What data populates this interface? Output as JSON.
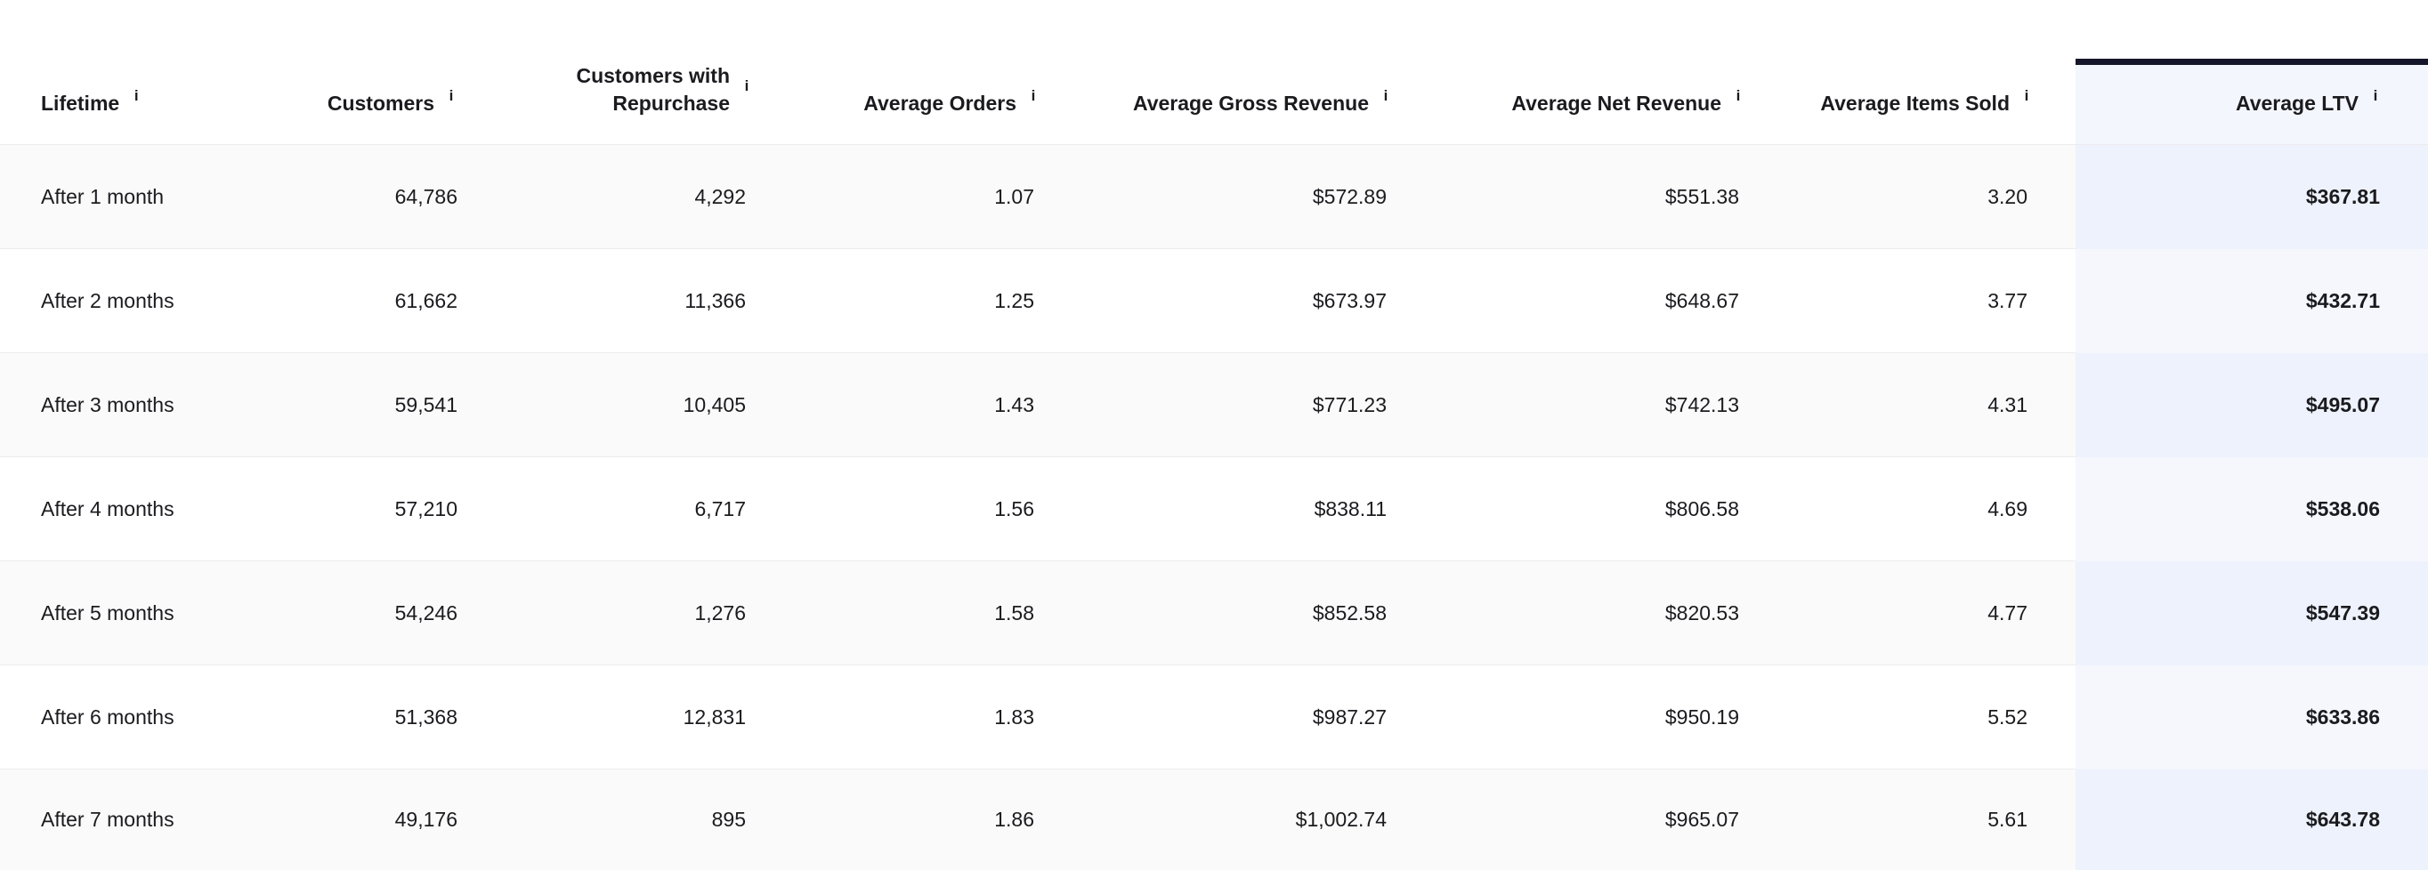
{
  "columns": [
    {
      "label": "Lifetime",
      "info": "i"
    },
    {
      "label": "Customers",
      "info": "i"
    },
    {
      "label": "Customers with Repurchase",
      "info": "i"
    },
    {
      "label": "Average Orders",
      "info": "i"
    },
    {
      "label": "Average Gross Revenue",
      "info": "i"
    },
    {
      "label": "Average Net Revenue",
      "info": "i"
    },
    {
      "label": "Average Items Sold",
      "info": "i"
    },
    {
      "label": "Average LTV",
      "info": "i"
    }
  ],
  "rows": [
    {
      "lifetime": "After 1 month",
      "customers": "64,786",
      "repurchase": "4,292",
      "avg_orders": "1.07",
      "avg_gross": "$572.89",
      "avg_net": "$551.38",
      "avg_items": "3.20",
      "avg_ltv": "$367.81"
    },
    {
      "lifetime": "After 2 months",
      "customers": "61,662",
      "repurchase": "11,366",
      "avg_orders": "1.25",
      "avg_gross": "$673.97",
      "avg_net": "$648.67",
      "avg_items": "3.77",
      "avg_ltv": "$432.71"
    },
    {
      "lifetime": "After 3 months",
      "customers": "59,541",
      "repurchase": "10,405",
      "avg_orders": "1.43",
      "avg_gross": "$771.23",
      "avg_net": "$742.13",
      "avg_items": "4.31",
      "avg_ltv": "$495.07"
    },
    {
      "lifetime": "After 4 months",
      "customers": "57,210",
      "repurchase": "6,717",
      "avg_orders": "1.56",
      "avg_gross": "$838.11",
      "avg_net": "$806.58",
      "avg_items": "4.69",
      "avg_ltv": "$538.06"
    },
    {
      "lifetime": "After 5 months",
      "customers": "54,246",
      "repurchase": "1,276",
      "avg_orders": "1.58",
      "avg_gross": "$852.58",
      "avg_net": "$820.53",
      "avg_items": "4.77",
      "avg_ltv": "$547.39"
    },
    {
      "lifetime": "After 6 months",
      "customers": "51,368",
      "repurchase": "12,831",
      "avg_orders": "1.83",
      "avg_gross": "$987.27",
      "avg_net": "$950.19",
      "avg_items": "5.52",
      "avg_ltv": "$633.86"
    },
    {
      "lifetime": "After 7 months",
      "customers": "49,176",
      "repurchase": "895",
      "avg_orders": "1.86",
      "avg_gross": "$1,002.74",
      "avg_net": "$965.07",
      "avg_items": "5.61",
      "avg_ltv": "$643.78"
    }
  ],
  "colors": {
    "highlight_bar": "#16162a",
    "highlight_column": "#f4f6fd",
    "row_alt": "#fafafa"
  }
}
